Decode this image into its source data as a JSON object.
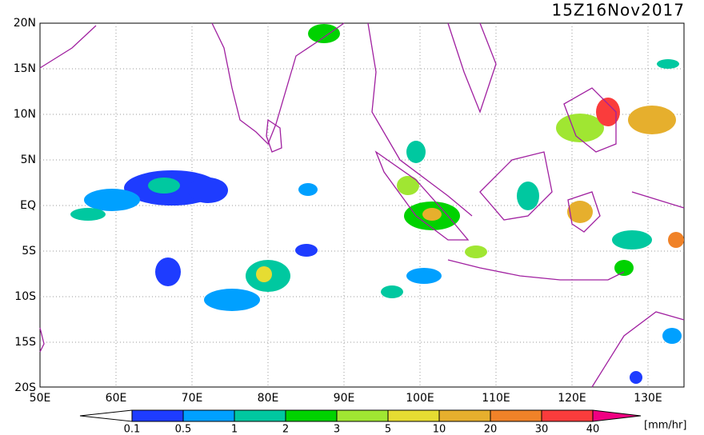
{
  "header": {
    "title": "15Z16Nov2017"
  },
  "map": {
    "lat_labels": [
      "20N",
      "15N",
      "10N",
      "5N",
      "EQ",
      "5S",
      "10S",
      "15S",
      "20S"
    ],
    "lon_labels": [
      "50E",
      "60E",
      "70E",
      "80E",
      "90E",
      "100E",
      "110E",
      "120E",
      "130E"
    ]
  },
  "colorbar": {
    "labels": [
      "0.1",
      "0.5",
      "1",
      "2",
      "3",
      "5",
      "10",
      "20",
      "30",
      "40"
    ],
    "colors": [
      "#1e3cff",
      "#00a0ff",
      "#00c8a0",
      "#00d200",
      "#a0e632",
      "#e6dc32",
      "#e6af2d",
      "#f08228",
      "#fa3c3c"
    ],
    "low_color": "#ffffff",
    "high_color": "#f00082",
    "unit": "[mm/hr]"
  }
}
